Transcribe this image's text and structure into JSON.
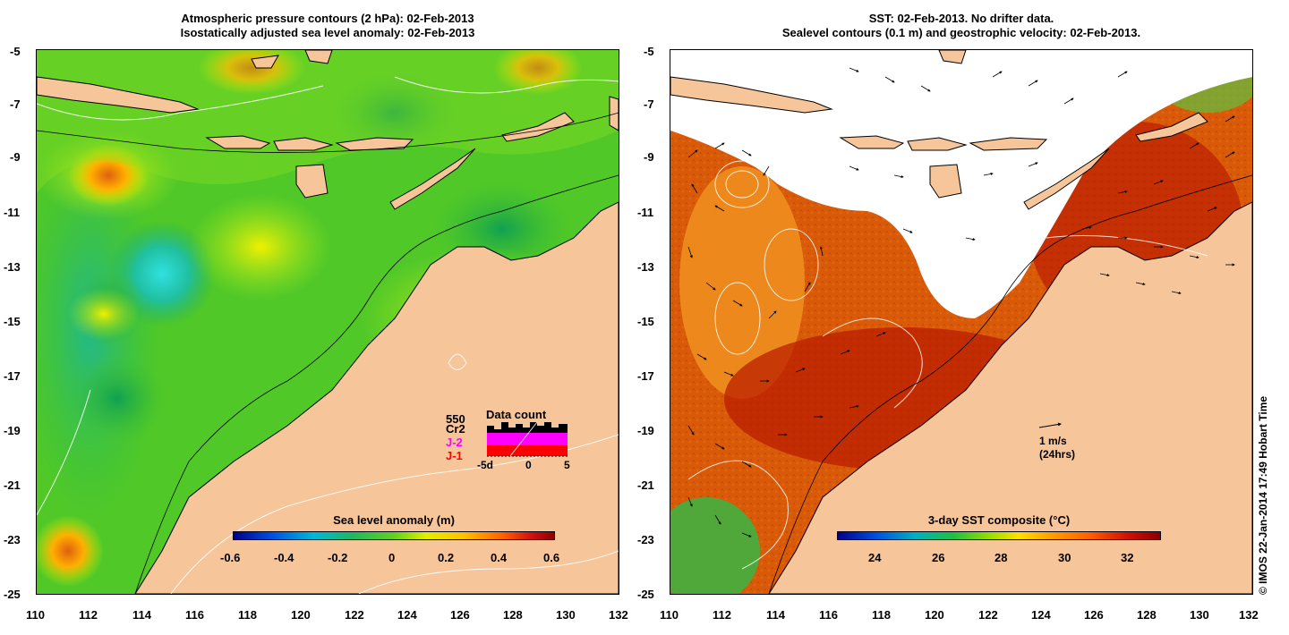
{
  "left_panel": {
    "title_line1": "Atmospheric pressure contours (2 hPa): 02-Feb-2013",
    "title_line2": "Isostatically adjusted sea level anomaly: 02-Feb-2013",
    "colorbar_label": "Sea level anomaly (m)",
    "colorbar_ticks": [
      "-0.6",
      "-0.4",
      "-0.2",
      "0",
      "0.2",
      "0.4",
      "0.6"
    ],
    "y_ticks": [
      "-5",
      "-7",
      "-9",
      "-11",
      "-13",
      "-15",
      "-17",
      "-19",
      "-21",
      "-23",
      "-25"
    ],
    "x_ticks": [
      "110",
      "112",
      "114",
      "116",
      "118",
      "120",
      "122",
      "124",
      "126",
      "128",
      "130",
      "132"
    ],
    "data_count": {
      "title": "Data count",
      "count": "550",
      "missions": [
        "Cr2",
        "J-2",
        "J-1"
      ],
      "mission_colors": [
        "#000000",
        "#ff00ff",
        "#ff0000"
      ],
      "x_ticks": [
        "-5d",
        "0",
        "5"
      ]
    }
  },
  "right_panel": {
    "title_line1": "SST: 02-Feb-2013. No drifter data.",
    "title_line2": "Sealevel contours (0.1 m) and geostrophic velocity: 02-Feb-2013.",
    "colorbar_label": "3-day SST composite (°C)",
    "colorbar_ticks": [
      "24",
      "26",
      "28",
      "30",
      "32"
    ],
    "y_ticks": [
      "-5",
      "-7",
      "-9",
      "-11",
      "-13",
      "-15",
      "-17",
      "-19",
      "-21",
      "-23",
      "-25"
    ],
    "x_ticks": [
      "110",
      "112",
      "114",
      "116",
      "118",
      "120",
      "122",
      "124",
      "126",
      "128",
      "130",
      "132"
    ],
    "velocity_scale_label": "1 m/s",
    "velocity_scale_sub": "(24hrs)"
  },
  "credit": "© IMOS 22-Jan-2014 17:49 Hobart Time",
  "colors": {
    "land": "#f7c59a",
    "anomaly_scale": [
      "#00008b",
      "#0070e0",
      "#00c8c8",
      "#20b050",
      "#b8f000",
      "#ffd000",
      "#ff8000",
      "#c00000",
      "#8b0000"
    ],
    "sst_scale": [
      "#00008b",
      "#0060e0",
      "#00b0b0",
      "#20c040",
      "#c8f000",
      "#ffc000",
      "#ff6000",
      "#c00000",
      "#8b0000"
    ]
  }
}
